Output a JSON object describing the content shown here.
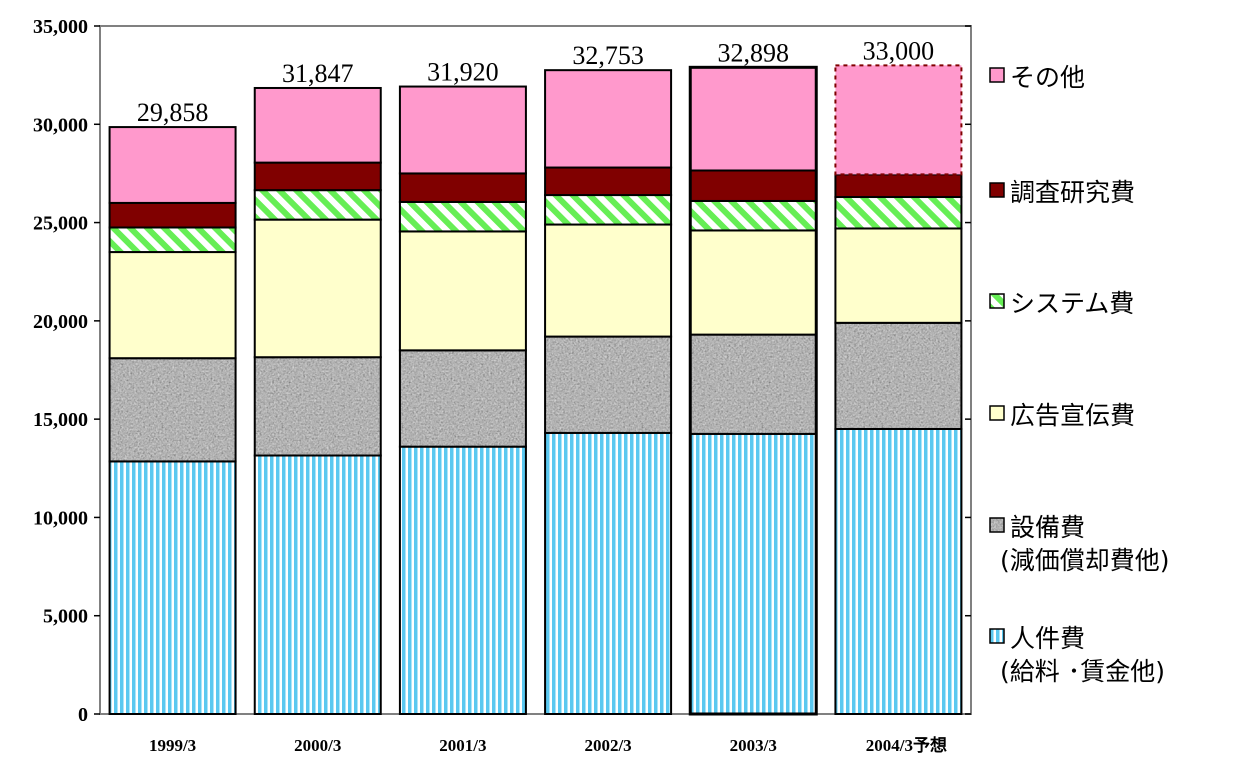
{
  "chart_data": {
    "type": "bar",
    "stacked": true,
    "categories": [
      "1999/3",
      "2000/3",
      "2001/3",
      "2002/3",
      "2003/3",
      "2004/3"
    ],
    "category_suffixes": [
      "",
      "",
      "",
      "",
      "",
      "予想"
    ],
    "ylim": [
      0,
      35000
    ],
    "yticks": [
      "0",
      "5,000",
      "10,000",
      "15,000",
      "20,000",
      "25,000",
      "30,000",
      "35,000"
    ],
    "grid": false,
    "legend_position": "right",
    "series": [
      {
        "name": "人件費\n(給料 ･賃金他)",
        "values": [
          12850,
          13150,
          13600,
          14300,
          14250,
          14500
        ],
        "color": "#5bc8f0",
        "pattern": "vertical-stripes"
      },
      {
        "name": "設備費\n(減価償却費他)",
        "values": [
          5250,
          5000,
          4900,
          4900,
          5050,
          5400
        ],
        "color": "#8c8c8c",
        "pattern": "granite"
      },
      {
        "name": "広告宣伝費",
        "values": [
          5400,
          7000,
          6050,
          5700,
          5300,
          4800
        ],
        "color": "#ffffcc",
        "pattern": "solid"
      },
      {
        "name": "システム費",
        "values": [
          1250,
          1500,
          1500,
          1500,
          1500,
          1600
        ],
        "color": "#66ee55",
        "pattern": "diagonal-stripes"
      },
      {
        "name": "調査研究費",
        "values": [
          1250,
          1400,
          1450,
          1400,
          1550,
          1150
        ],
        "color": "#800000",
        "pattern": "solid"
      },
      {
        "name": "その他",
        "values": [
          3858,
          3797,
          4420,
          4953,
          5248,
          5550
        ],
        "color": "#ff99cc",
        "pattern": "solid"
      }
    ],
    "totals": [
      "29,858",
      "31,847",
      "31,920",
      "32,753",
      "32,898",
      "33,000"
    ],
    "total_values": [
      29858,
      31847,
      31920,
      32753,
      32898,
      33000
    ],
    "highlighted_category": "2003/3",
    "forecast_category": "2004/3"
  }
}
